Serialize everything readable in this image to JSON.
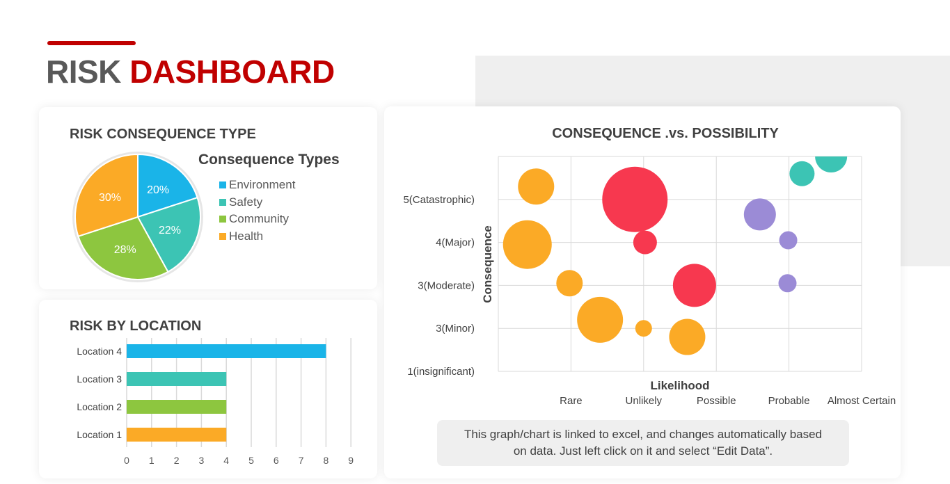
{
  "header": {
    "title_part1": "RISK",
    "title_part2": "DASHBOARD"
  },
  "pie_card": {
    "title": "RISK CONSEQUENCE TYPE",
    "legend_title": "Consequence Types"
  },
  "bar_card": {
    "title": "RISK BY LOCATION"
  },
  "bubble_card": {
    "title": "CONSEQUENCE .vs. POSSIBILITY"
  },
  "note": {
    "text": "This graph/chart is linked to excel, and changes automatically based on data. Just left click on it and select “Edit Data”."
  },
  "colors": {
    "accent": "#c00000",
    "environment": "#1ab4e8",
    "safety": "#3cc4b4",
    "community": "#8dc63f",
    "health": "#fbaa26",
    "red": "#f7384f",
    "purple": "#9b8bd6"
  },
  "chart_data": [
    {
      "type": "pie",
      "title": "Consequence Types",
      "categories": [
        "Environment",
        "Safety",
        "Community",
        "Health"
      ],
      "values": [
        20,
        22,
        28,
        30
      ],
      "labels": [
        "20%",
        "22%",
        "28%",
        "30%"
      ],
      "colors": [
        "#1ab4e8",
        "#3cc4b4",
        "#8dc63f",
        "#fbaa26"
      ],
      "legend": "right"
    },
    {
      "type": "bar",
      "orientation": "horizontal",
      "categories": [
        "Location 4",
        "Location 3",
        "Location 2",
        "Location 1"
      ],
      "values": [
        8,
        4,
        4,
        4
      ],
      "colors": [
        "#1ab4e8",
        "#3cc4b4",
        "#8dc63f",
        "#fbaa26"
      ],
      "xlim": [
        0,
        9
      ],
      "xticks": [
        0,
        1,
        2,
        3,
        4,
        5,
        6,
        7,
        8,
        9
      ],
      "grid": true
    },
    {
      "type": "scatter",
      "subtype": "bubble",
      "xlabel": "Likelihood",
      "ylabel": "Consequence",
      "xlim": [
        0,
        5
      ],
      "ylim": [
        0,
        5
      ],
      "x_tick_labels": [
        {
          "value": 1,
          "label": "Rare"
        },
        {
          "value": 2,
          "label": "Unlikely"
        },
        {
          "value": 3,
          "label": "Possible"
        },
        {
          "value": 4,
          "label": "Probable"
        },
        {
          "value": 5,
          "label": "Almost Certain"
        }
      ],
      "y_tick_labels": [
        {
          "value": 0,
          "label": "1(insignificant)"
        },
        {
          "value": 1,
          "label": "3(Minor)"
        },
        {
          "value": 2,
          "label": "3(Moderate)"
        },
        {
          "value": 3,
          "label": "4(Major)"
        },
        {
          "value": 4,
          "label": "5(Catastrophic)"
        }
      ],
      "grid": true,
      "points": [
        {
          "x": 0.52,
          "y": 4.3,
          "size": 26,
          "color": "#fbaa26"
        },
        {
          "x": 0.4,
          "y": 2.95,
          "size": 35,
          "color": "#fbaa26"
        },
        {
          "x": 0.98,
          "y": 2.05,
          "size": 19,
          "color": "#fbaa26"
        },
        {
          "x": 1.4,
          "y": 1.2,
          "size": 33,
          "color": "#fbaa26"
        },
        {
          "x": 2.0,
          "y": 1.0,
          "size": 12,
          "color": "#fbaa26"
        },
        {
          "x": 2.6,
          "y": 0.8,
          "size": 26,
          "color": "#fbaa26"
        },
        {
          "x": 1.88,
          "y": 4.0,
          "size": 47,
          "color": "#f7384f"
        },
        {
          "x": 2.02,
          "y": 3.0,
          "size": 17,
          "color": "#f7384f"
        },
        {
          "x": 2.7,
          "y": 2.0,
          "size": 31,
          "color": "#f7384f"
        },
        {
          "x": 3.6,
          "y": 3.65,
          "size": 23,
          "color": "#9b8bd6"
        },
        {
          "x": 3.99,
          "y": 3.05,
          "size": 13,
          "color": "#9b8bd6"
        },
        {
          "x": 3.98,
          "y": 2.05,
          "size": 13,
          "color": "#9b8bd6"
        },
        {
          "x": 4.18,
          "y": 4.6,
          "size": 18,
          "color": "#3cc4b4"
        },
        {
          "x": 4.58,
          "y": 5.0,
          "size": 23,
          "color": "#3cc4b4"
        }
      ]
    }
  ]
}
